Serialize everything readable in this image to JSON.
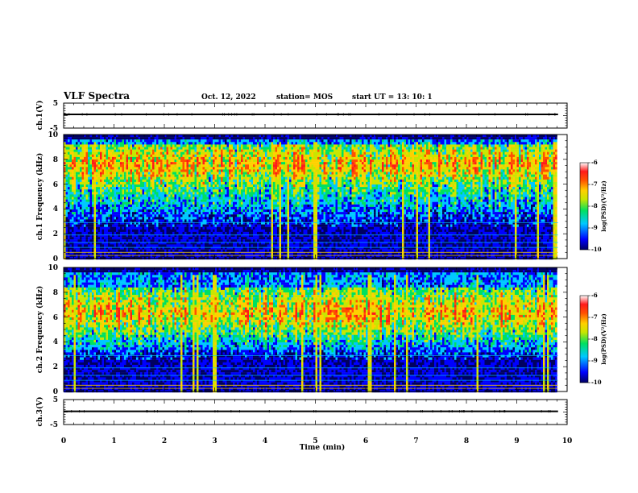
{
  "header": {
    "title": "VLF Spectra",
    "date": "Oct. 12, 2022",
    "station": "station= MOS",
    "start": "start  UT  =   13: 10: 1"
  },
  "chart_data": [
    {
      "type": "line",
      "panel": "ch1-waveform",
      "ylabel": "ch.1(V)",
      "ylim": [
        -5,
        5
      ],
      "yticks": [
        "5",
        "-5"
      ],
      "xlim": [
        0,
        10
      ],
      "series": [
        {
          "x": [
            0,
            9.82
          ],
          "y": [
            0.5,
            0.5
          ]
        }
      ]
    },
    {
      "type": "heatmap",
      "panel": "ch1-spectrogram",
      "ylabel": "ch.1 Frequency (kHz)",
      "ylim": [
        0,
        10
      ],
      "yticks": [
        "0",
        "2",
        "4",
        "6",
        "8",
        "10"
      ],
      "xlim": [
        0,
        10
      ],
      "data_extent_min": 9.82,
      "band_khz": [
        5.5,
        9.2
      ],
      "peak_khz": 7.6,
      "colorbar": {
        "label": "log(PSD)(V²/Hz)",
        "range": [
          -10,
          -6
        ],
        "ticks": [
          "-6",
          "-7",
          "-8",
          "-9",
          "-10"
        ],
        "colors": [
          "#000060",
          "#0000ff",
          "#00c8ff",
          "#00e060",
          "#c8e600",
          "#ffd000",
          "#ff5000",
          "#ff1a1a",
          "#ffffff"
        ]
      }
    },
    {
      "type": "heatmap",
      "panel": "ch2-spectrogram",
      "ylabel": "ch.2 Frequency (kHz)",
      "ylim": [
        0,
        10
      ],
      "yticks": [
        "0",
        "2",
        "4",
        "6",
        "8",
        "10"
      ],
      "xlim": [
        0,
        10
      ],
      "data_extent_min": 9.82,
      "band_khz": [
        4.5,
        8.4
      ],
      "peak_khz": 6.4,
      "colorbar": {
        "label": "log(PSD)(V²/Hz)",
        "range": [
          -10,
          -6
        ],
        "ticks": [
          "-6",
          "-7",
          "-8",
          "-9",
          "-10"
        ],
        "colors": [
          "#000060",
          "#0000ff",
          "#00c8ff",
          "#00e060",
          "#c8e600",
          "#ffd000",
          "#ff5000",
          "#ff1a1a",
          "#ffffff"
        ]
      }
    },
    {
      "type": "line",
      "panel": "ch3-waveform",
      "ylabel": "ch.3(V)",
      "ylim": [
        -5,
        5
      ],
      "yticks": [
        "5",
        "-5"
      ],
      "xlim": [
        0,
        10
      ],
      "xlabel": "Time  (min)",
      "xticks": [
        "0",
        "1",
        "2",
        "3",
        "4",
        "5",
        "6",
        "7",
        "8",
        "9",
        "10"
      ],
      "series": [
        {
          "x": [
            0,
            9.82
          ],
          "y": [
            0.3,
            0.3
          ]
        }
      ]
    }
  ]
}
